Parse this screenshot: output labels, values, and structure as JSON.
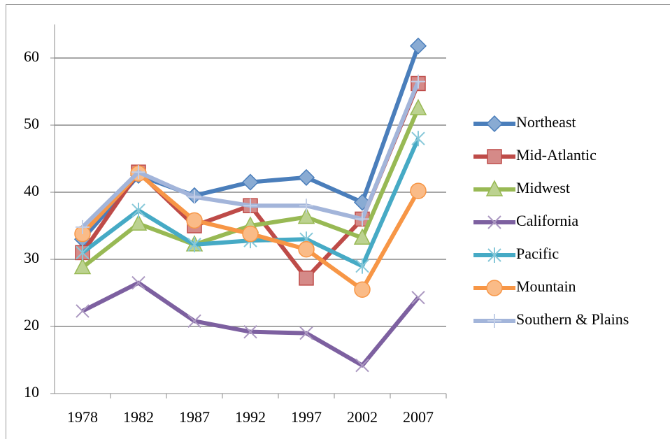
{
  "chart_data": {
    "type": "line",
    "categories": [
      "1978",
      "1982",
      "1987",
      "1992",
      "1997",
      "2002",
      "2007"
    ],
    "series": [
      {
        "name": "Northeast",
        "color": "#4a7ebb",
        "marker": "diamond",
        "values": [
          33,
          42.5,
          39.5,
          41.5,
          42.2,
          38.5,
          61.8
        ]
      },
      {
        "name": "Mid-Atlantic",
        "color": "#be4b48",
        "marker": "square",
        "values": [
          31,
          43,
          35,
          38,
          27.2,
          36,
          56.2
        ]
      },
      {
        "name": "Midwest",
        "color": "#98b954",
        "marker": "triangle",
        "values": [
          28.8,
          35.3,
          32.2,
          35,
          36.3,
          33.2,
          52.5
        ]
      },
      {
        "name": "California",
        "color": "#7d60a0",
        "marker": "x",
        "values": [
          22.3,
          26.5,
          20.8,
          19.2,
          19,
          14.2,
          24.3
        ]
      },
      {
        "name": "Pacific",
        "color": "#46aac5",
        "marker": "star",
        "values": [
          31,
          37.3,
          32.2,
          32.8,
          33,
          29,
          48
        ]
      },
      {
        "name": "Mountain",
        "color": "#f79646",
        "marker": "circle",
        "values": [
          33.8,
          42.8,
          35.8,
          33.8,
          31.5,
          25.5,
          40.2
        ]
      },
      {
        "name": "Southern & Plains",
        "color": "#a3b5da",
        "marker": "plus",
        "values": [
          34.8,
          43,
          39.3,
          38,
          38,
          36,
          56.5
        ]
      }
    ],
    "ylim": [
      10,
      65
    ],
    "yticks": [
      10,
      20,
      30,
      40,
      50,
      60
    ],
    "grid": true,
    "legend": "right"
  }
}
